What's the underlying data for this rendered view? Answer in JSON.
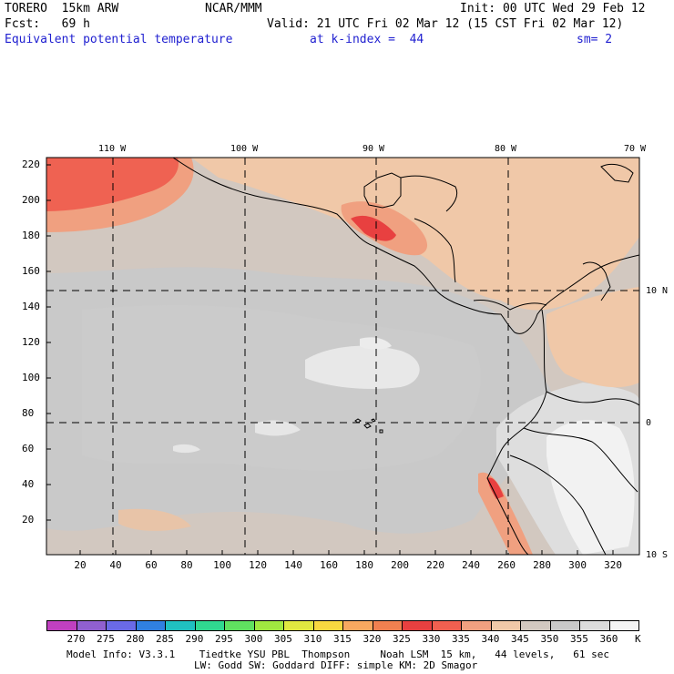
{
  "header": {
    "model": "TORERO  15km ARW",
    "center": "NCAR/MMM",
    "init": "Init: 00 UTC Wed 29 Feb 12",
    "fcst": "Fcst:   69 h",
    "valid": "Valid: 21 UTC Fri 02 Mar 12 (15 CST Fri 02 Mar 12)",
    "field": "Equivalent potential temperature",
    "level": "at k-index =  44",
    "smooth": "sm= 2"
  },
  "map": {
    "lon_labels": [
      "110 W",
      "100 W",
      "90 W",
      "80 W",
      "70 W"
    ],
    "lat_labels": [
      "10 N",
      "0",
      "10 S"
    ],
    "y_ticks": [
      "220",
      "200",
      "180",
      "160",
      "140",
      "120",
      "100",
      "80",
      "60",
      "40",
      "20"
    ],
    "x_ticks": [
      "20",
      "40",
      "60",
      "80",
      "100",
      "120",
      "140",
      "160",
      "180",
      "200",
      "220",
      "240",
      "260",
      "280",
      "300",
      "320"
    ]
  },
  "colorbar": {
    "levels": [
      "270",
      "275",
      "280",
      "285",
      "290",
      "295",
      "300",
      "305",
      "310",
      "315",
      "320",
      "325",
      "330",
      "335",
      "340",
      "345",
      "350",
      "355",
      "360"
    ],
    "unit": "K",
    "colors": [
      "#c040c0",
      "#9060d0",
      "#6a6ae6",
      "#3080e0",
      "#20c0c0",
      "#30d890",
      "#60e060",
      "#a0e840",
      "#e0e840",
      "#f8d840",
      "#f8a860",
      "#f08050",
      "#e84040",
      "#f06050",
      "#f0a080",
      "#f0c8a8",
      "#d2c8c0",
      "#c8c8c8",
      "#dcdcdc",
      "#f4f4f4"
    ]
  },
  "footer": {
    "line1": "Model Info: V3.3.1    Tiedtke YSU PBL  Thompson     Noah LSM  15 km,   44 levels,   61 sec",
    "line2": "LW: Godd SW: Goddard DIFF: simple KM: 2D Smagor"
  }
}
